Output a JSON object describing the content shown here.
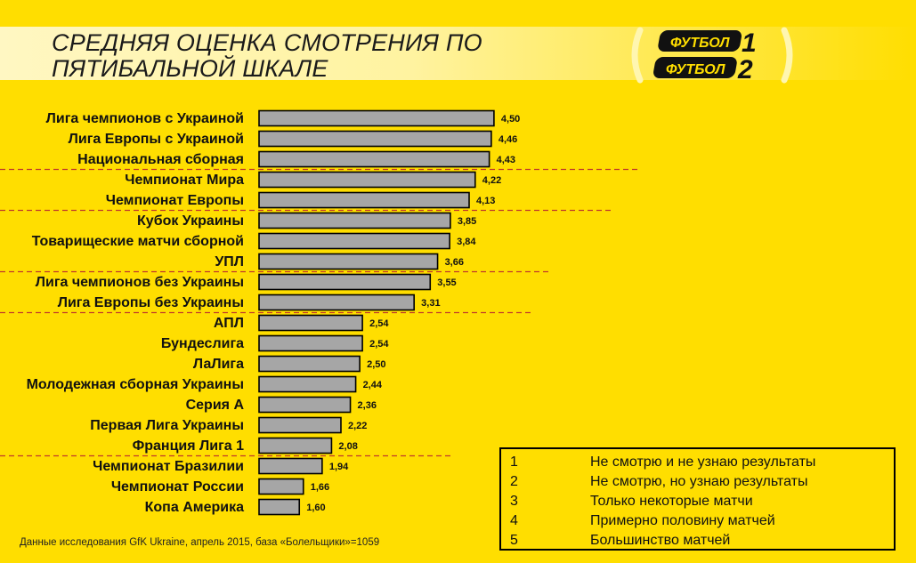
{
  "title": "СРЕДНЯЯ ОЦЕНКА СМОТРЕНИЯ ПО\nПЯТИБАЛЬНОЙ ШКАЛЕ",
  "logo": {
    "line1": "ФУТБОЛ",
    "num1": "1",
    "line2": "ФУТБОЛ",
    "num2": "2"
  },
  "colors": {
    "background": "#FFDE00",
    "bar": "#A6A6A6",
    "bar_stroke": "#000000",
    "separator": "#C0392B"
  },
  "chart_data": {
    "type": "bar",
    "orientation": "horizontal",
    "title": "СРЕДНЯЯ ОЦЕНКА СМОТРЕНИЯ ПО ПЯТИБАЛЬНОЙ ШКАЛЕ",
    "xlim": [
      1,
      5
    ],
    "grid": false,
    "categories": [
      "Лига чемпионов с Украиной",
      "Лига Европы с Украиной",
      "Национальная сборная",
      "Чемпионат Мира",
      "Чемпионат Европы",
      "Кубок Украины",
      "Товарищеские матчи сборной",
      "УПЛ",
      "Лига чемпионов без Украины",
      "Лига Европы без Украины",
      "АПЛ",
      "Бундеслига",
      "ЛаЛига",
      "Молодежная сборная Украины",
      "Серия А",
      "Первая Лига Украины",
      "Франция Лига 1",
      "Чемпионат Бразилии",
      "Чемпионат России",
      "Копа Америка"
    ],
    "values": [
      4.5,
      4.46,
      4.43,
      4.22,
      4.13,
      3.85,
      3.84,
      3.66,
      3.55,
      3.31,
      2.54,
      2.54,
      2.5,
      2.44,
      2.36,
      2.22,
      2.08,
      1.94,
      1.66,
      1.6
    ],
    "value_labels": [
      "4,50",
      "4,46",
      "4,43",
      "4,22",
      "4,13",
      "3,85",
      "3,84",
      "3,66",
      "3,55",
      "3,31",
      "2,54",
      "2,54",
      "2,50",
      "2,44",
      "2,36",
      "2,22",
      "2,08",
      "1,94",
      "1,66",
      "1,60"
    ],
    "group_separators_after_index": [
      2,
      4,
      7,
      9,
      16
    ]
  },
  "legend": {
    "items": [
      {
        "key": "1",
        "text": "Не смотрю и не узнаю результаты"
      },
      {
        "key": "2",
        "text": "Не смотрю, но узнаю результаты"
      },
      {
        "key": "3",
        "text": "Только некоторые матчи"
      },
      {
        "key": "4",
        "text": "Примерно половину матчей"
      },
      {
        "key": "5",
        "text": "Большинство матчей"
      }
    ]
  },
  "source": "Данные исследования GfK Ukraine, апрель 2015, база «Болельщики»=1059"
}
